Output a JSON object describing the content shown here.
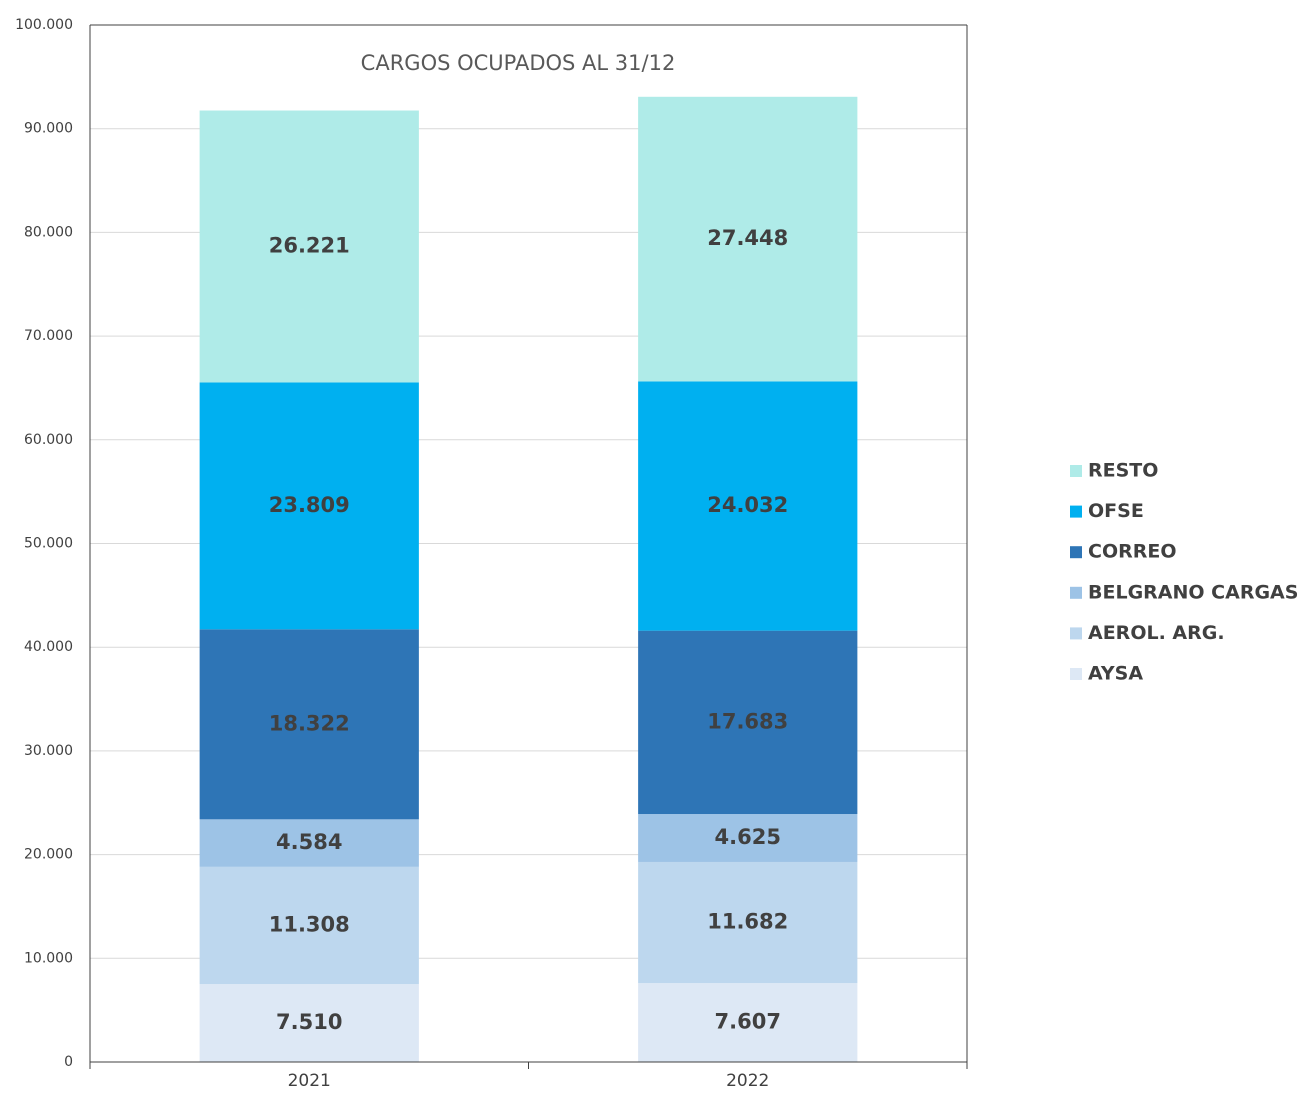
{
  "chart_data": {
    "type": "stacked_bar",
    "title": "CARGOS OCUPADOS AL 31/12",
    "categories": [
      "2021",
      "2022"
    ],
    "series": [
      {
        "name": "AYSA",
        "color": "#dde8f5",
        "values": [
          7510,
          7607
        ],
        "value_labels": [
          "7.510",
          "7.607"
        ]
      },
      {
        "name": "AEROL. ARG.",
        "color": "#bdd7ee",
        "values": [
          11308,
          11682
        ],
        "value_labels": [
          "11.308",
          "11.682"
        ]
      },
      {
        "name": "BELGRANO CARGAS",
        "color": "#9dc3e6",
        "values": [
          4584,
          4625
        ],
        "value_labels": [
          "4.584",
          "4.625"
        ]
      },
      {
        "name": "CORREO",
        "color": "#2e75b6",
        "values": [
          18322,
          17683
        ],
        "value_labels": [
          "18.322",
          "17.683"
        ]
      },
      {
        "name": "OFSE",
        "color": "#00b0f0",
        "values": [
          23809,
          24032
        ],
        "value_labels": [
          "23.809",
          "24.032"
        ]
      },
      {
        "name": "RESTO",
        "color": "#afebe8",
        "values": [
          26221,
          27448
        ],
        "value_labels": [
          "26.221",
          "27.448"
        ]
      }
    ],
    "ylim": [
      0,
      100000
    ],
    "yticks": [
      0,
      {
        "value": 10000,
        "label": "10.000"
      },
      {
        "value": 20000,
        "label": "20.000"
      },
      {
        "value": 30000,
        "label": "30.000"
      },
      {
        "value": 40000,
        "label": "40.000"
      },
      {
        "value": 50000,
        "label": "50.000"
      },
      {
        "value": 60000,
        "label": "60.000"
      },
      {
        "value": 70000,
        "label": "70.000"
      },
      {
        "value": 80000,
        "label": "80.000"
      },
      {
        "value": 90000,
        "label": "90.000"
      },
      {
        "value": 100000,
        "label": "100.000"
      }
    ],
    "grid": true,
    "legend": "right"
  }
}
